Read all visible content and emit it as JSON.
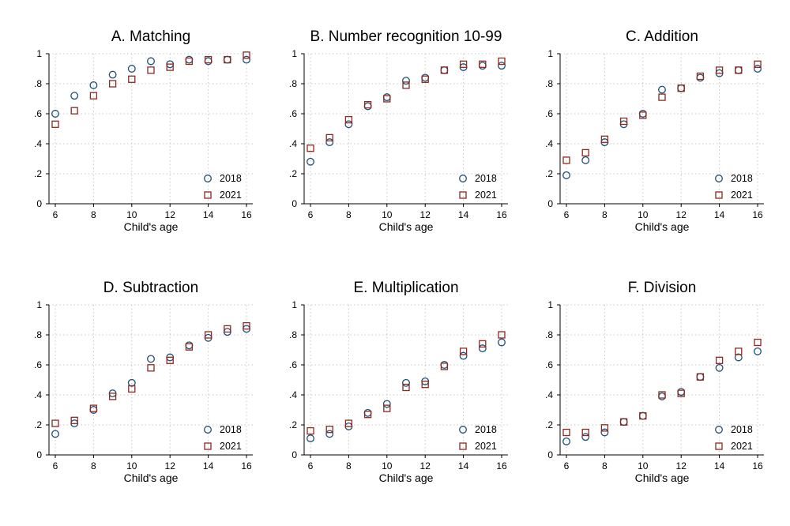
{
  "chart_data": [
    {
      "type": "scatter",
      "title": "A. Matching",
      "xlabel": "Child's age",
      "ylabel": "",
      "xlim": [
        6,
        16
      ],
      "ylim": [
        0,
        1
      ],
      "x": [
        6,
        7,
        8,
        9,
        10,
        11,
        12,
        13,
        14,
        15,
        16
      ],
      "series": [
        {
          "name": "2018",
          "marker": "circle",
          "values": [
            0.6,
            0.72,
            0.79,
            0.86,
            0.9,
            0.95,
            0.93,
            0.96,
            0.95,
            0.96,
            0.96
          ]
        },
        {
          "name": "2021",
          "marker": "square",
          "values": [
            0.53,
            0.62,
            0.72,
            0.8,
            0.83,
            0.89,
            0.91,
            0.95,
            0.96,
            0.96,
            0.99
          ]
        }
      ]
    },
    {
      "type": "scatter",
      "title": "B. Number recognition 10-99",
      "xlabel": "Child's age",
      "ylabel": "",
      "xlim": [
        6,
        16
      ],
      "ylim": [
        0,
        1
      ],
      "x": [
        6,
        7,
        8,
        9,
        10,
        11,
        12,
        13,
        14,
        15,
        16
      ],
      "series": [
        {
          "name": "2018",
          "marker": "circle",
          "values": [
            0.28,
            0.41,
            0.53,
            0.65,
            0.71,
            0.82,
            0.84,
            0.89,
            0.91,
            0.92,
            0.92
          ]
        },
        {
          "name": "2021",
          "marker": "square",
          "values": [
            0.37,
            0.44,
            0.56,
            0.66,
            0.7,
            0.79,
            0.83,
            0.89,
            0.93,
            0.93,
            0.95
          ]
        }
      ]
    },
    {
      "type": "scatter",
      "title": "C. Addition",
      "xlabel": "Child's age",
      "ylabel": "",
      "xlim": [
        6,
        16
      ],
      "ylim": [
        0,
        1
      ],
      "x": [
        6,
        7,
        8,
        9,
        10,
        11,
        12,
        13,
        14,
        15,
        16
      ],
      "series": [
        {
          "name": "2018",
          "marker": "circle",
          "values": [
            0.19,
            0.29,
            0.41,
            0.53,
            0.6,
            0.76,
            0.77,
            0.84,
            0.87,
            0.89,
            0.9
          ]
        },
        {
          "name": "2021",
          "marker": "square",
          "values": [
            0.29,
            0.34,
            0.43,
            0.55,
            0.59,
            0.71,
            0.77,
            0.85,
            0.89,
            0.89,
            0.93
          ]
        }
      ]
    },
    {
      "type": "scatter",
      "title": "D. Subtraction",
      "xlabel": "Child's age",
      "ylabel": "",
      "xlim": [
        6,
        16
      ],
      "ylim": [
        0,
        1
      ],
      "x": [
        6,
        7,
        8,
        9,
        10,
        11,
        12,
        13,
        14,
        15,
        16
      ],
      "series": [
        {
          "name": "2018",
          "marker": "circle",
          "values": [
            0.14,
            0.21,
            0.3,
            0.41,
            0.48,
            0.64,
            0.65,
            0.73,
            0.78,
            0.82,
            0.84
          ]
        },
        {
          "name": "2021",
          "marker": "square",
          "values": [
            0.21,
            0.23,
            0.31,
            0.39,
            0.44,
            0.58,
            0.63,
            0.72,
            0.8,
            0.84,
            0.86
          ]
        }
      ]
    },
    {
      "type": "scatter",
      "title": "E. Multiplication",
      "xlabel": "Child's age",
      "ylabel": "",
      "xlim": [
        6,
        16
      ],
      "ylim": [
        0,
        1
      ],
      "x": [
        6,
        7,
        8,
        9,
        10,
        11,
        12,
        13,
        14,
        15,
        16
      ],
      "series": [
        {
          "name": "2018",
          "marker": "circle",
          "values": [
            0.11,
            0.14,
            0.19,
            0.28,
            0.34,
            0.48,
            0.49,
            0.6,
            0.66,
            0.71,
            0.75
          ]
        },
        {
          "name": "2021",
          "marker": "square",
          "values": [
            0.16,
            0.17,
            0.21,
            0.27,
            0.31,
            0.45,
            0.47,
            0.59,
            0.69,
            0.74,
            0.8
          ]
        }
      ]
    },
    {
      "type": "scatter",
      "title": "F. Division",
      "xlabel": "Child's age",
      "ylabel": "",
      "xlim": [
        6,
        16
      ],
      "ylim": [
        0,
        1
      ],
      "x": [
        6,
        7,
        8,
        9,
        10,
        11,
        12,
        13,
        14,
        15,
        16
      ],
      "series": [
        {
          "name": "2018",
          "marker": "circle",
          "values": [
            0.09,
            0.12,
            0.15,
            0.22,
            0.26,
            0.39,
            0.42,
            0.52,
            0.58,
            0.65,
            0.69
          ]
        },
        {
          "name": "2021",
          "marker": "square",
          "values": [
            0.15,
            0.15,
            0.18,
            0.22,
            0.26,
            0.4,
            0.41,
            0.52,
            0.63,
            0.69,
            0.75
          ]
        }
      ]
    }
  ],
  "axes": {
    "x_ticks": [
      6,
      8,
      10,
      12,
      14,
      16
    ],
    "y_ticks": [
      0,
      0.2,
      0.4,
      0.6,
      0.8,
      1
    ],
    "y_tick_labels": [
      "0",
      ".2",
      ".4",
      ".6",
      ".8",
      "1"
    ]
  },
  "colors": {
    "series_2018": "#1f4e79",
    "series_2021": "#8b2a1f",
    "grid": "#c8c8c8",
    "axis": "#000000"
  }
}
